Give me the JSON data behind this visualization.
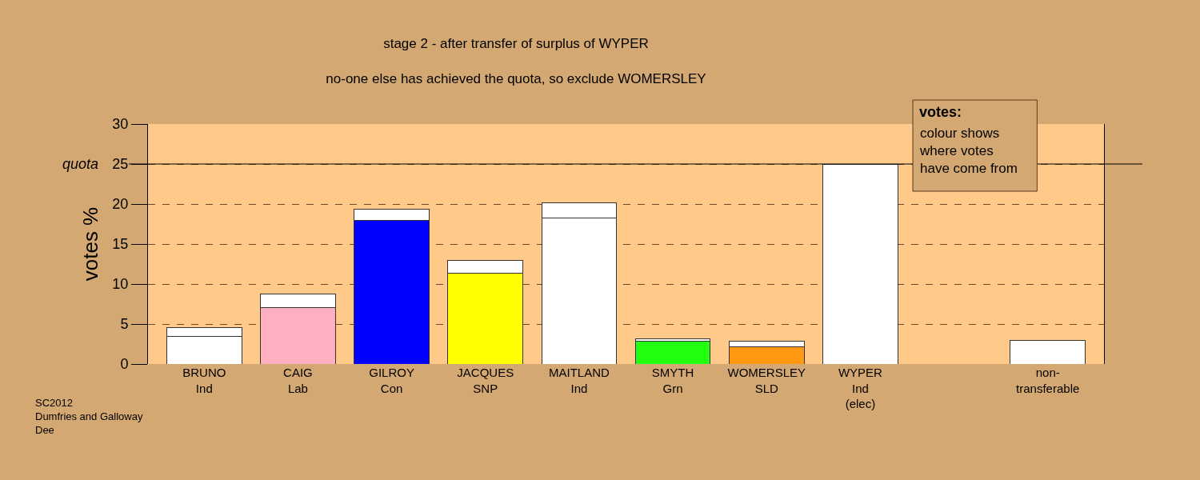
{
  "chart_data": {
    "type": "bar",
    "stacked": true,
    "title": "stage 2 - after transfer of surplus of WYPER",
    "subtitle": "no-one else has achieved the quota, so exclude WOMERSLEY",
    "ylabel": "votes %",
    "categories": [
      "BRUNO\nInd",
      "CAIG\nLab",
      "GILROY\nCon",
      "JACQUES\nSNP",
      "MAITLAND\nInd",
      "SMYTH\nGrn",
      "WOMERSLEY\nSLD",
      "WYPER\nInd\n(elec)",
      null,
      "non-\ntransferable"
    ],
    "series": [
      {
        "colors": [
          "#ffffff",
          "#ffb0c0",
          "#0000ff",
          "#ffff00",
          "#ffffff",
          "#22ff11",
          "#ff9911",
          "#ffffff",
          null,
          "#ffffff"
        ],
        "values": [
          3.5,
          7.1,
          18.0,
          11.4,
          18.3,
          2.9,
          2.2,
          25.0,
          null,
          3.0
        ]
      },
      {
        "color": "#ffffff",
        "values": [
          1.1,
          1.7,
          1.4,
          1.6,
          1.9,
          0.3,
          0.7,
          0,
          null,
          0
        ]
      }
    ],
    "ylim": [
      0,
      30
    ],
    "yticks": [
      0,
      5,
      10,
      15,
      20,
      25,
      30
    ],
    "ref_lines": [
      {
        "axis": "y",
        "value": 25,
        "label": "quota",
        "line_style": "solid",
        "color": "#000000"
      }
    ],
    "grid": "y",
    "annotations": [
      "votes:",
      "colour shows\nwhere votes\nhave come from",
      "SC2012\nDumfries and Galloway\nDee"
    ]
  }
}
